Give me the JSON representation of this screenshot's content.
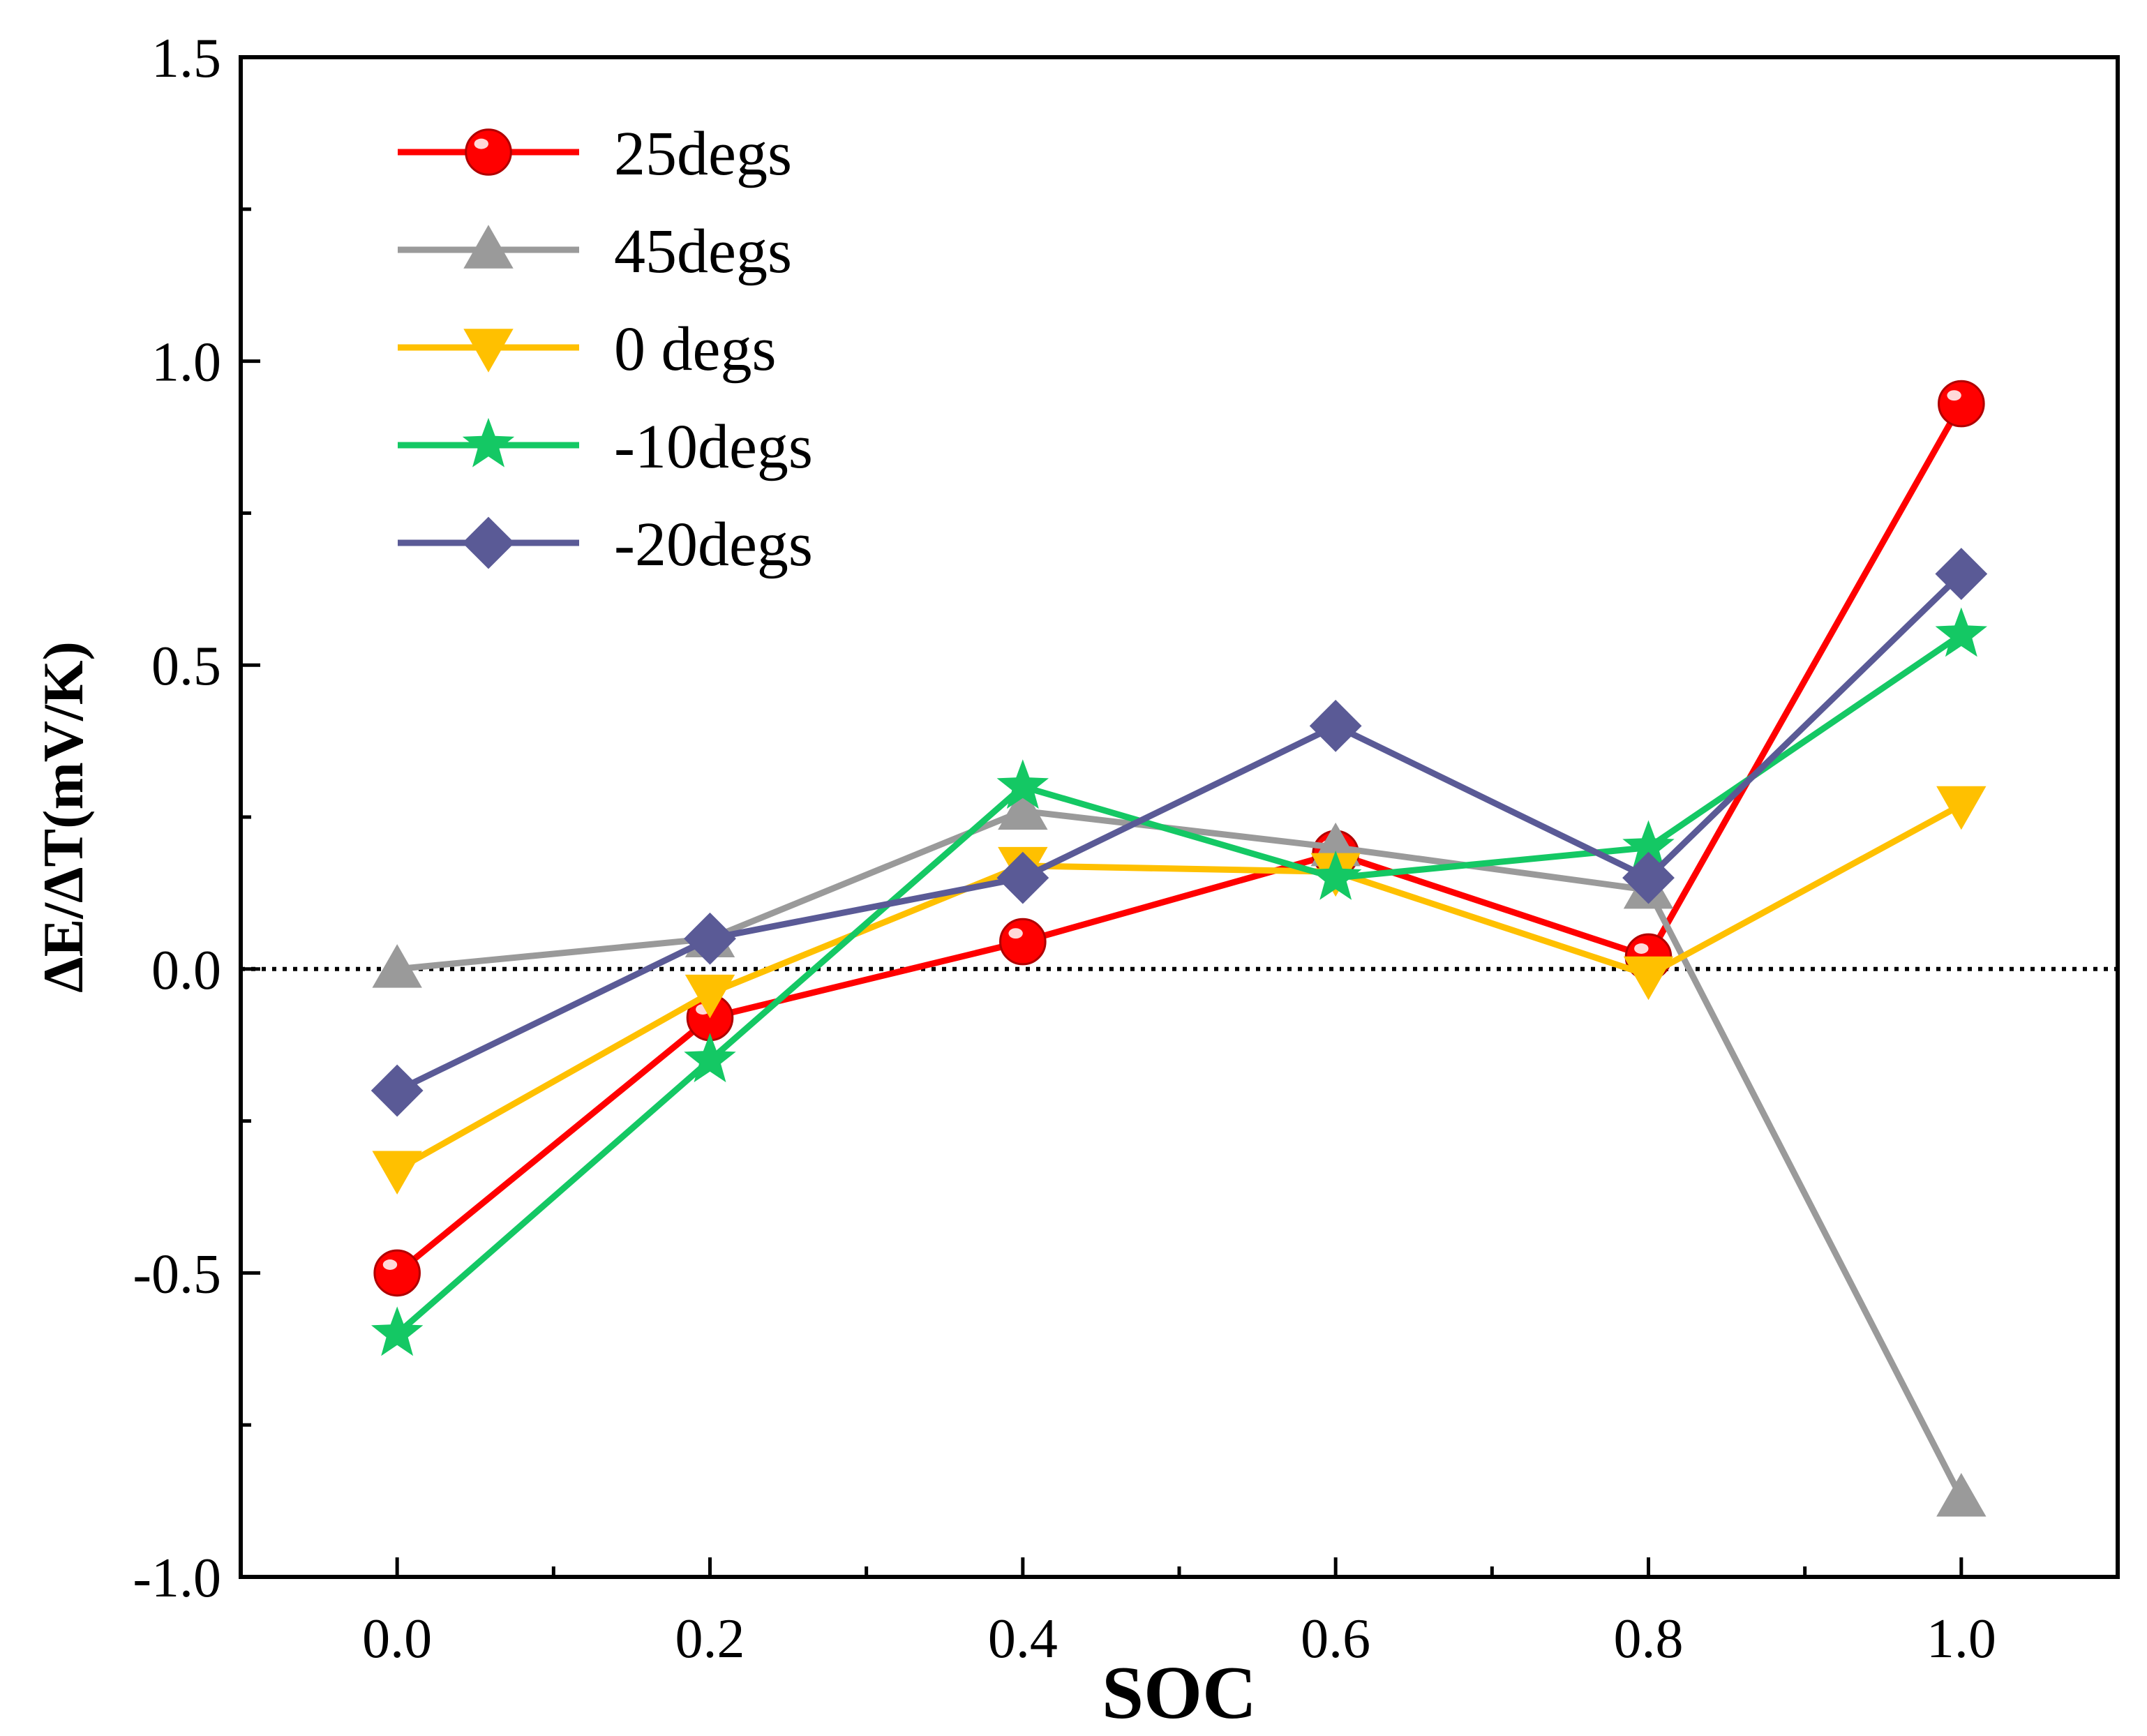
{
  "chart_data": {
    "type": "line",
    "title": "",
    "xlabel": "SOC",
    "ylabel": "ΔE/ΔT(mV/K)",
    "xlim": [
      -0.1,
      1.1
    ],
    "ylim": [
      -1.0,
      1.5
    ],
    "x_ticks": [
      "0.0",
      "0.2",
      "0.4",
      "0.6",
      "0.8",
      "1.0"
    ],
    "y_ticks": [
      "-1.0",
      "-0.5",
      "0.0",
      "0.5",
      "1.0",
      "1.5"
    ],
    "reference_line": {
      "y": 0.0,
      "style": "dotted"
    },
    "legend_position": "top-left",
    "x": [
      0.0,
      0.2,
      0.4,
      0.6,
      0.8,
      1.0
    ],
    "series": [
      {
        "name": "25degs",
        "color": "#ff0000",
        "marker": "circle",
        "values": [
          -0.5,
          -0.08,
          0.045,
          0.19,
          0.02,
          0.93
        ]
      },
      {
        "name": "45degs",
        "color": "#9a9a9a",
        "marker": "triangle-up",
        "values": [
          0.0,
          0.05,
          0.26,
          0.2,
          0.13,
          -0.87
        ]
      },
      {
        "name": " 0 degs",
        "color": "#ffc000",
        "marker": "triangle-down",
        "values": [
          -0.33,
          -0.04,
          0.17,
          0.16,
          -0.01,
          0.27
        ]
      },
      {
        "name": "-10degs",
        "color": "#14c864",
        "marker": "star",
        "values": [
          -0.6,
          -0.15,
          0.3,
          0.15,
          0.2,
          0.55
        ]
      },
      {
        "name": "-20degs",
        "color": "#5a5a96",
        "marker": "diamond",
        "values": [
          -0.2,
          0.05,
          0.15,
          0.4,
          0.15,
          0.65
        ]
      }
    ]
  }
}
